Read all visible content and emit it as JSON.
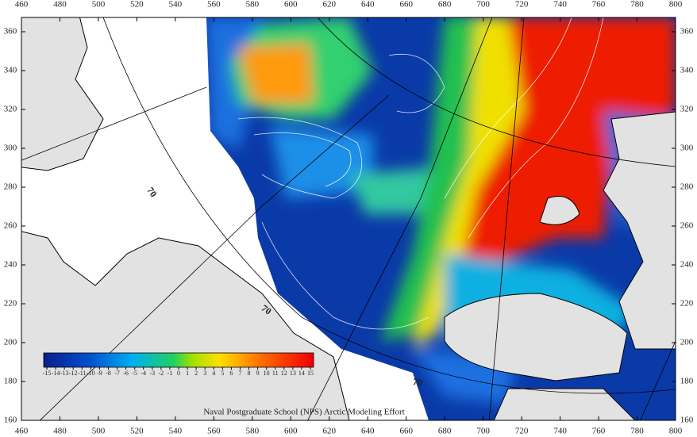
{
  "map": {
    "x_ticks": [
      460,
      480,
      500,
      520,
      540,
      560,
      580,
      600,
      620,
      640,
      660,
      680,
      700,
      720,
      740,
      760,
      780,
      800
    ],
    "y_ticks": [
      160,
      180,
      200,
      220,
      240,
      260,
      280,
      300,
      320,
      340,
      360
    ],
    "graticule_labels": [
      "70",
      "70",
      "70"
    ],
    "colorbar_labels": [
      -15,
      -14,
      -13,
      -12,
      -11,
      -10,
      -9,
      -8,
      -7,
      -6,
      -5,
      -4,
      -3,
      -2,
      -1,
      0,
      1,
      2,
      3,
      4,
      5,
      6,
      7,
      8,
      9,
      10,
      11,
      12,
      13,
      14,
      15
    ],
    "credit": "Naval Postgraduate School (NPS) Arctic Modeling Effort"
  }
}
